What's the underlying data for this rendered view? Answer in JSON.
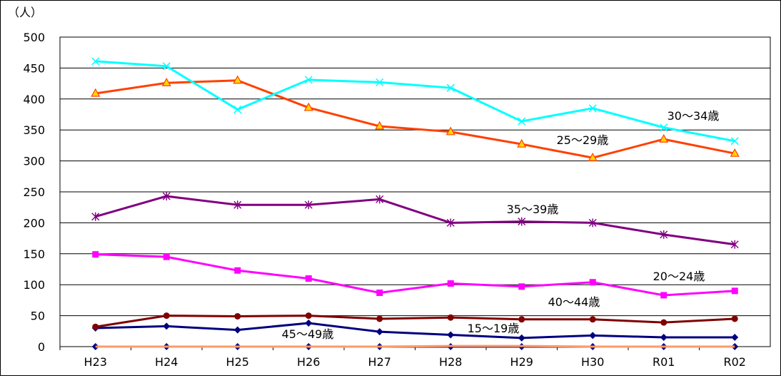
{
  "chart_data": {
    "type": "line",
    "unit_label": "（人）",
    "categories": [
      "H23",
      "H24",
      "H25",
      "H26",
      "H27",
      "H28",
      "H29",
      "H30",
      "R01",
      "R02"
    ],
    "ylim": [
      0,
      500
    ],
    "yticks": [
      0,
      50,
      100,
      150,
      200,
      250,
      300,
      350,
      400,
      450,
      500
    ],
    "grid": true,
    "legend": "none",
    "series": [
      {
        "name": "15〜19歳",
        "color": "#00007F",
        "marker": "diamond",
        "values": [
          30,
          33,
          27,
          38,
          24,
          19,
          14,
          18,
          15,
          15
        ]
      },
      {
        "name": "20〜24歳",
        "color": "#FF00FF",
        "marker": "square",
        "values": [
          149,
          145,
          123,
          110,
          87,
          102,
          97,
          104,
          83,
          90
        ]
      },
      {
        "name": "25〜29歳",
        "color": "#FF4000",
        "marker": "triangle",
        "values": [
          409,
          426,
          430,
          386,
          356,
          347,
          327,
          305,
          335,
          312
        ]
      },
      {
        "name": "30〜34歳",
        "color": "#00FFFF",
        "marker": "x",
        "values": [
          461,
          453,
          383,
          431,
          427,
          418,
          364,
          385,
          354,
          332
        ]
      },
      {
        "name": "35〜39歳",
        "color": "#800080",
        "marker": "asterisk",
        "values": [
          210,
          243,
          229,
          229,
          238,
          200,
          202,
          200,
          181,
          165
        ]
      },
      {
        "name": "40〜44歳",
        "color": "#800000",
        "marker": "circle",
        "values": [
          32,
          50,
          49,
          50,
          45,
          47,
          44,
          44,
          39,
          45
        ]
      },
      {
        "name": "45〜49歳",
        "color": "#00007F",
        "marker": "diamond",
        "values": [
          0,
          0,
          0,
          0,
          0,
          0,
          0,
          0,
          0,
          0
        ]
      },
      {
        "name": "",
        "color": "#FF9966",
        "marker": "none",
        "values": [
          0,
          0,
          0,
          0,
          0,
          1,
          1,
          0,
          0,
          0
        ]
      }
    ],
    "annotations": [
      {
        "text": "30〜34歳"
      },
      {
        "text": "25〜29歳"
      },
      {
        "text": "35〜39歳"
      },
      {
        "text": "20〜24歳"
      },
      {
        "text": "40〜44歳"
      },
      {
        "text": "15〜19歳"
      },
      {
        "text": "45〜49歳"
      }
    ]
  }
}
